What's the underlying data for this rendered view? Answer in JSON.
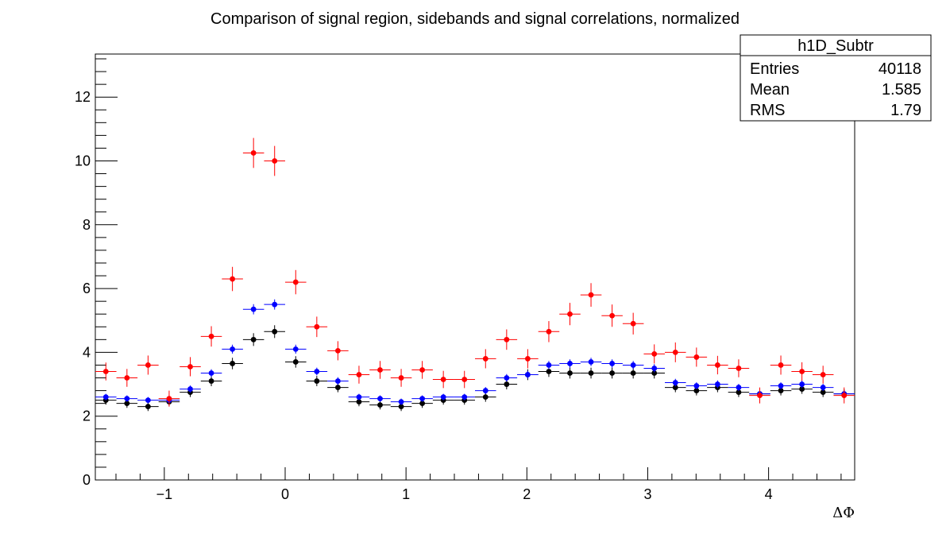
{
  "chart_data": {
    "type": "scatter",
    "title": "Comparison of signal region, sidebands and signal correlations, normalized",
    "xlabel": "ΔΦ",
    "ylabel": "",
    "xlim": [
      -1.5708,
      4.7124
    ],
    "ylim": [
      0,
      13.35
    ],
    "x_ticks": [
      -1,
      0,
      1,
      2,
      3,
      4
    ],
    "x_tick_labels": [
      "−1",
      "0",
      "1",
      "2",
      "3",
      "4"
    ],
    "y_ticks": [
      0,
      2,
      4,
      6,
      8,
      10,
      12
    ],
    "y_tick_labels": [
      "0",
      "2",
      "4",
      "6",
      "8",
      "10",
      "12"
    ],
    "grid": false,
    "legend": "none",
    "colors": {
      "red_series": "#ff0000",
      "blue_series": "#0000ff",
      "black_series": "#000000"
    },
    "x": [
      -1.4835,
      -1.309,
      -1.1345,
      -0.96,
      -0.7854,
      -0.6109,
      -0.4363,
      -0.2618,
      -0.0873,
      0.0873,
      0.2618,
      0.4363,
      0.6109,
      0.7854,
      0.96,
      1.1345,
      1.309,
      1.4835,
      1.6581,
      1.8326,
      2.0071,
      2.1817,
      2.3562,
      2.5307,
      2.7053,
      2.8798,
      3.0543,
      3.2289,
      3.4034,
      3.5779,
      3.7525,
      3.927,
      4.1015,
      4.2761,
      4.4506,
      4.6251
    ],
    "series": [
      {
        "color": "#ff0000",
        "values": [
          3.4,
          3.2,
          3.6,
          2.55,
          3.55,
          4.5,
          6.3,
          10.25,
          10.0,
          6.2,
          4.8,
          4.05,
          3.3,
          3.45,
          3.2,
          3.45,
          3.15,
          3.15,
          3.8,
          4.4,
          3.8,
          4.65,
          5.2,
          5.8,
          5.15,
          4.9,
          3.95,
          4.0,
          3.85,
          3.6,
          3.5,
          2.65,
          3.6,
          3.4,
          3.3,
          2.65
        ],
        "errors": [
          0.28,
          0.28,
          0.3,
          0.25,
          0.3,
          0.32,
          0.38,
          0.47,
          0.47,
          0.38,
          0.32,
          0.3,
          0.28,
          0.28,
          0.28,
          0.28,
          0.27,
          0.27,
          0.3,
          0.32,
          0.3,
          0.33,
          0.35,
          0.37,
          0.35,
          0.34,
          0.3,
          0.31,
          0.3,
          0.29,
          0.28,
          0.25,
          0.3,
          0.29,
          0.28,
          0.25
        ]
      },
      {
        "color": "#0000ff",
        "values": [
          2.6,
          2.55,
          2.5,
          2.5,
          2.85,
          3.35,
          4.1,
          5.35,
          5.5,
          4.1,
          3.4,
          3.1,
          2.6,
          2.55,
          2.45,
          2.55,
          2.6,
          2.6,
          2.8,
          3.2,
          3.3,
          3.6,
          3.65,
          3.7,
          3.65,
          3.6,
          3.5,
          3.05,
          2.95,
          3.0,
          2.9,
          2.7,
          2.95,
          3.0,
          2.9,
          2.7
        ],
        "errors": [
          0.1,
          0.1,
          0.1,
          0.1,
          0.11,
          0.12,
          0.14,
          0.16,
          0.16,
          0.14,
          0.12,
          0.12,
          0.1,
          0.1,
          0.1,
          0.1,
          0.1,
          0.1,
          0.11,
          0.12,
          0.12,
          0.13,
          0.13,
          0.13,
          0.13,
          0.13,
          0.13,
          0.12,
          0.11,
          0.12,
          0.11,
          0.1,
          0.11,
          0.12,
          0.11,
          0.1
        ]
      },
      {
        "color": "#000000",
        "values": [
          2.5,
          2.4,
          2.3,
          2.45,
          2.75,
          3.1,
          3.65,
          4.4,
          4.65,
          3.7,
          3.1,
          2.9,
          2.45,
          2.35,
          2.3,
          2.4,
          2.5,
          2.5,
          2.6,
          3.0,
          3.3,
          3.4,
          3.35,
          3.35,
          3.35,
          3.35,
          3.35,
          2.9,
          2.8,
          2.9,
          2.75,
          2.7,
          2.8,
          2.85,
          2.75,
          2.7
        ],
        "errors": [
          0.14,
          0.14,
          0.14,
          0.14,
          0.15,
          0.16,
          0.18,
          0.2,
          0.2,
          0.18,
          0.16,
          0.15,
          0.14,
          0.14,
          0.14,
          0.14,
          0.14,
          0.14,
          0.15,
          0.16,
          0.17,
          0.17,
          0.17,
          0.17,
          0.17,
          0.17,
          0.17,
          0.15,
          0.15,
          0.15,
          0.15,
          0.14,
          0.15,
          0.15,
          0.15,
          0.14
        ]
      }
    ],
    "stats_box": {
      "title": "h1D_Subtr",
      "rows": [
        {
          "label": "Entries",
          "value": "40118"
        },
        {
          "label": "Mean",
          "value": "1.585"
        },
        {
          "label": "RMS",
          "value": "1.79"
        }
      ]
    }
  }
}
